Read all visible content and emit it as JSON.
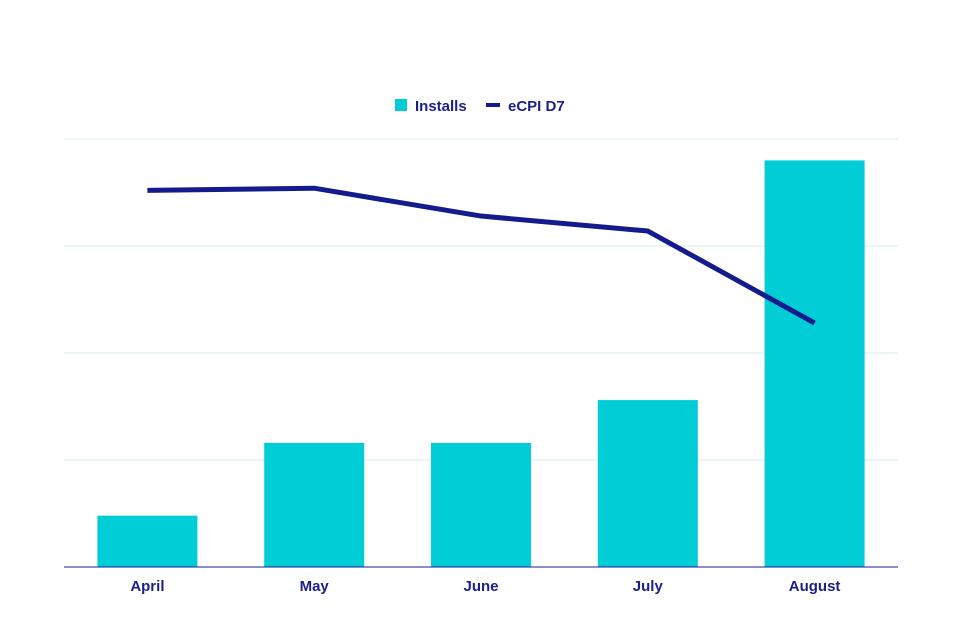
{
  "chart_data": {
    "type": "bar",
    "title": "",
    "xlabel": "",
    "ylabel": "",
    "categories": [
      "April",
      "May",
      "June",
      "July",
      "August"
    ],
    "series": [
      {
        "name": "Installs",
        "type": "bar",
        "values": [
          12,
          29,
          29,
          39,
          95
        ]
      },
      {
        "name": "eCPI D7",
        "type": "line",
        "values": [
          88,
          88.5,
          82,
          78.5,
          57
        ]
      }
    ],
    "ylim": [
      0,
      100
    ],
    "grid": true,
    "legend_position": "top-center",
    "colors": {
      "bar": "#00cdd6",
      "line": "#141b8c",
      "grid": "#d3ecef",
      "axis": "#1a1f8c",
      "text": "#1a1f8c"
    }
  }
}
